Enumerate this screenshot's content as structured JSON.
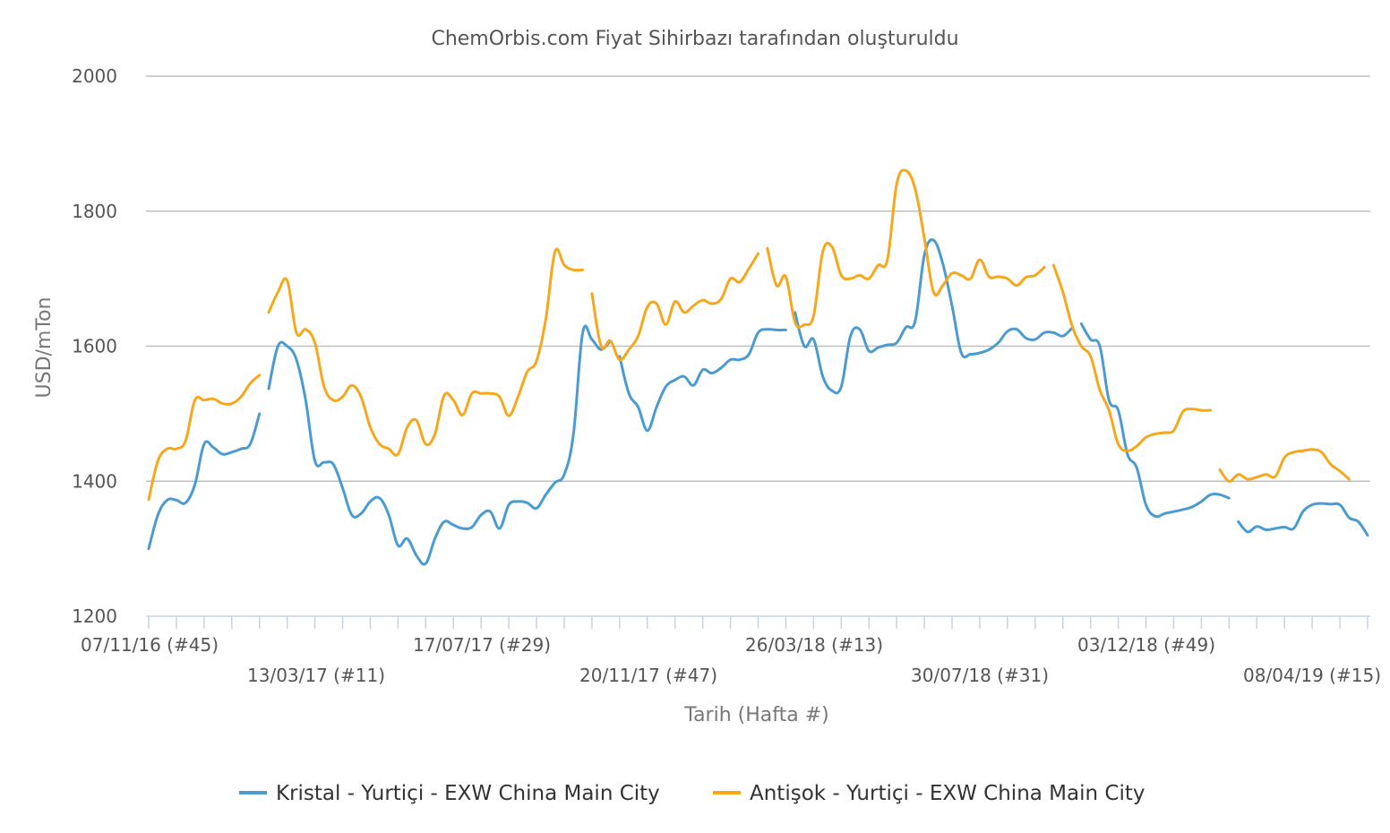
{
  "chart_data": {
    "type": "line",
    "title": "ChemOrbis.com Fiyat Sihirbazı tarafından oluşturuldu",
    "xlabel": "Tarih (Hafta #)",
    "ylabel": "USD/mTon",
    "ylim": [
      1200,
      2000
    ],
    "yticks": [
      "2000",
      "1800",
      "1600",
      "1400",
      "1200"
    ],
    "ytick_values": [
      2000,
      1800,
      1600,
      1400,
      1200
    ],
    "grid": true,
    "legend_position": "bottom",
    "x_range_weeks": [
      0,
      128
    ],
    "x_tick_labels": [
      {
        "label": "07/11/16 (#45)",
        "week": 0,
        "row": 0
      },
      {
        "label": "13/03/17 (#11)",
        "week": 18,
        "row": 1
      },
      {
        "label": "17/07/17 (#29)",
        "week": 36,
        "row": 0
      },
      {
        "label": "20/11/17 (#47)",
        "week": 54,
        "row": 1
      },
      {
        "label": "26/03/18 (#13)",
        "week": 72,
        "row": 0
      },
      {
        "label": "30/07/18 (#31)",
        "week": 90,
        "row": 1
      },
      {
        "label": "03/12/18 (#49)",
        "week": 108,
        "row": 0
      },
      {
        "label": "08/04/19 (#15)",
        "week": 126,
        "row": 1
      }
    ],
    "series": [
      {
        "name": "Kristal - Yurtiçi - EXW China Main City",
        "color": "#4a9bd1",
        "segments": [
          [
            [
              0,
              1300
            ],
            [
              1,
              1350
            ],
            [
              2,
              1372
            ],
            [
              3,
              1372
            ],
            [
              4,
              1368
            ],
            [
              5,
              1395
            ],
            [
              6,
              1455
            ],
            [
              7,
              1450
            ],
            [
              8,
              1440
            ],
            [
              9,
              1443
            ],
            [
              10,
              1448
            ],
            [
              11,
              1455
            ],
            [
              12,
              1500
            ]
          ],
          [
            [
              13,
              1537
            ],
            [
              14,
              1600
            ],
            [
              15,
              1600
            ],
            [
              16,
              1580
            ],
            [
              17,
              1520
            ],
            [
              18,
              1430
            ],
            [
              19,
              1428
            ],
            [
              20,
              1425
            ],
            [
              21,
              1390
            ],
            [
              22,
              1350
            ],
            [
              23,
              1352
            ],
            [
              24,
              1370
            ],
            [
              25,
              1375
            ],
            [
              26,
              1350
            ],
            [
              27,
              1305
            ],
            [
              28,
              1315
            ],
            [
              29,
              1290
            ],
            [
              30,
              1278
            ],
            [
              31,
              1315
            ],
            [
              32,
              1340
            ],
            [
              33,
              1335
            ],
            [
              34,
              1330
            ],
            [
              35,
              1332
            ],
            [
              36,
              1350
            ],
            [
              37,
              1355
            ],
            [
              38,
              1330
            ],
            [
              39,
              1365
            ],
            [
              40,
              1370
            ],
            [
              41,
              1368
            ],
            [
              42,
              1360
            ],
            [
              43,
              1380
            ],
            [
              44,
              1398
            ],
            [
              45,
              1410
            ],
            [
              46,
              1470
            ],
            [
              47,
              1620
            ],
            [
              48,
              1610
            ],
            [
              49,
              1595
            ],
            [
              50,
              1608
            ]
          ],
          [
            [
              51,
              1585
            ],
            [
              52,
              1530
            ],
            [
              53,
              1510
            ],
            [
              54,
              1475
            ],
            [
              55,
              1510
            ],
            [
              56,
              1540
            ],
            [
              57,
              1550
            ],
            [
              58,
              1555
            ],
            [
              59,
              1542
            ],
            [
              60,
              1565
            ],
            [
              61,
              1560
            ],
            [
              62,
              1568
            ],
            [
              63,
              1580
            ],
            [
              64,
              1580
            ],
            [
              65,
              1588
            ],
            [
              66,
              1620
            ],
            [
              67,
              1625
            ],
            [
              68,
              1624
            ],
            [
              69,
              1624
            ]
          ],
          [
            [
              70,
              1650
            ],
            [
              71,
              1600
            ],
            [
              72,
              1610
            ],
            [
              73,
              1555
            ],
            [
              74,
              1534
            ],
            [
              75,
              1540
            ],
            [
              76,
              1615
            ],
            [
              77,
              1625
            ],
            [
              78,
              1593
            ],
            [
              79,
              1598
            ],
            [
              80,
              1602
            ],
            [
              81,
              1605
            ],
            [
              82,
              1628
            ],
            [
              83,
              1637
            ],
            [
              84,
              1735
            ],
            [
              85,
              1757
            ],
            [
              86,
              1722
            ],
            [
              87,
              1660
            ],
            [
              88,
              1590
            ],
            [
              89,
              1588
            ],
            [
              90,
              1590
            ],
            [
              91,
              1595
            ],
            [
              92,
              1605
            ],
            [
              93,
              1622
            ],
            [
              94,
              1625
            ],
            [
              95,
              1612
            ],
            [
              96,
              1610
            ],
            [
              97,
              1620
            ],
            [
              98,
              1620
            ],
            [
              99,
              1615
            ],
            [
              100,
              1627
            ]
          ],
          [
            [
              101,
              1633
            ],
            [
              102,
              1610
            ],
            [
              103,
              1600
            ],
            [
              104,
              1520
            ],
            [
              105,
              1505
            ],
            [
              106,
              1440
            ],
            [
              107,
              1420
            ],
            [
              108,
              1365
            ],
            [
              109,
              1348
            ],
            [
              110,
              1352
            ],
            [
              111,
              1355
            ],
            [
              112,
              1358
            ],
            [
              113,
              1362
            ],
            [
              114,
              1370
            ],
            [
              115,
              1380
            ],
            [
              116,
              1380
            ],
            [
              117,
              1375
            ]
          ],
          [
            [
              118,
              1340
            ],
            [
              119,
              1325
            ],
            [
              120,
              1333
            ],
            [
              121,
              1328
            ],
            [
              122,
              1330
            ],
            [
              123,
              1332
            ],
            [
              124,
              1330
            ],
            [
              125,
              1355
            ],
            [
              126,
              1365
            ],
            [
              127,
              1367
            ],
            [
              128,
              1366
            ],
            [
              129,
              1365
            ],
            [
              130,
              1346
            ],
            [
              131,
              1340
            ],
            [
              132,
              1320
            ]
          ]
        ]
      },
      {
        "name": "Antişok - Yurtiçi - EXW China Main City",
        "color": "#f6a71b",
        "segments": [
          [
            [
              0,
              1373
            ],
            [
              1,
              1430
            ],
            [
              2,
              1448
            ],
            [
              3,
              1448
            ],
            [
              4,
              1460
            ],
            [
              5,
              1520
            ],
            [
              6,
              1520
            ],
            [
              7,
              1522
            ],
            [
              8,
              1515
            ],
            [
              9,
              1515
            ],
            [
              10,
              1525
            ],
            [
              11,
              1545
            ],
            [
              12,
              1557
            ]
          ],
          [
            [
              13,
              1650
            ],
            [
              14,
              1680
            ],
            [
              15,
              1697
            ],
            [
              16,
              1620
            ],
            [
              17,
              1625
            ],
            [
              18,
              1605
            ],
            [
              19,
              1540
            ],
            [
              20,
              1520
            ],
            [
              21,
              1525
            ],
            [
              22,
              1542
            ],
            [
              23,
              1525
            ],
            [
              24,
              1480
            ],
            [
              25,
              1455
            ],
            [
              26,
              1448
            ],
            [
              27,
              1440
            ],
            [
              28,
              1480
            ],
            [
              29,
              1490
            ],
            [
              30,
              1455
            ],
            [
              31,
              1470
            ],
            [
              32,
              1527
            ],
            [
              33,
              1520
            ],
            [
              34,
              1498
            ],
            [
              35,
              1530
            ],
            [
              36,
              1530
            ],
            [
              37,
              1530
            ],
            [
              38,
              1525
            ],
            [
              39,
              1497
            ],
            [
              40,
              1525
            ],
            [
              41,
              1562
            ],
            [
              42,
              1578
            ],
            [
              43,
              1640
            ],
            [
              44,
              1740
            ],
            [
              45,
              1720
            ],
            [
              46,
              1713
            ],
            [
              47,
              1713
            ]
          ],
          [
            [
              48,
              1678
            ],
            [
              49,
              1600
            ],
            [
              50,
              1608
            ],
            [
              51,
              1580
            ],
            [
              52,
              1595
            ],
            [
              53,
              1615
            ],
            [
              54,
              1658
            ],
            [
              55,
              1663
            ],
            [
              56,
              1632
            ],
            [
              57,
              1666
            ],
            [
              58,
              1650
            ],
            [
              59,
              1660
            ],
            [
              60,
              1668
            ],
            [
              61,
              1663
            ],
            [
              62,
              1670
            ],
            [
              63,
              1700
            ],
            [
              64,
              1695
            ],
            [
              65,
              1715
            ],
            [
              66,
              1737
            ]
          ],
          [
            [
              67,
              1745
            ],
            [
              68,
              1690
            ],
            [
              69,
              1703
            ],
            [
              70,
              1635
            ],
            [
              71,
              1632
            ],
            [
              72,
              1645
            ],
            [
              73,
              1740
            ],
            [
              74,
              1747
            ],
            [
              75,
              1705
            ],
            [
              76,
              1700
            ],
            [
              77,
              1705
            ],
            [
              78,
              1700
            ],
            [
              79,
              1720
            ],
            [
              80,
              1728
            ],
            [
              81,
              1840
            ],
            [
              82,
              1860
            ],
            [
              83,
              1833
            ],
            [
              84,
              1760
            ],
            [
              85,
              1680
            ],
            [
              86,
              1690
            ],
            [
              87,
              1708
            ],
            [
              88,
              1705
            ],
            [
              89,
              1700
            ],
            [
              90,
              1728
            ],
            [
              91,
              1703
            ],
            [
              92,
              1703
            ],
            [
              93,
              1700
            ],
            [
              94,
              1690
            ],
            [
              95,
              1702
            ],
            [
              96,
              1705
            ],
            [
              97,
              1717
            ]
          ],
          [
            [
              98,
              1720
            ],
            [
              99,
              1680
            ],
            [
              100,
              1630
            ],
            [
              101,
              1600
            ],
            [
              102,
              1585
            ],
            [
              103,
              1535
            ],
            [
              104,
              1505
            ],
            [
              105,
              1455
            ],
            [
              106,
              1445
            ],
            [
              107,
              1452
            ],
            [
              108,
              1465
            ],
            [
              109,
              1470
            ],
            [
              110,
              1472
            ],
            [
              111,
              1475
            ],
            [
              112,
              1503
            ],
            [
              113,
              1507
            ],
            [
              114,
              1505
            ],
            [
              115,
              1505
            ]
          ],
          [
            [
              116,
              1417
            ],
            [
              117,
              1400
            ],
            [
              118,
              1410
            ],
            [
              119,
              1403
            ],
            [
              120,
              1406
            ],
            [
              121,
              1410
            ],
            [
              122,
              1407
            ],
            [
              123,
              1435
            ],
            [
              124,
              1443
            ],
            [
              125,
              1445
            ],
            [
              126,
              1447
            ],
            [
              127,
              1443
            ],
            [
              128,
              1425
            ],
            [
              129,
              1415
            ],
            [
              130,
              1403
            ]
          ]
        ]
      }
    ]
  }
}
